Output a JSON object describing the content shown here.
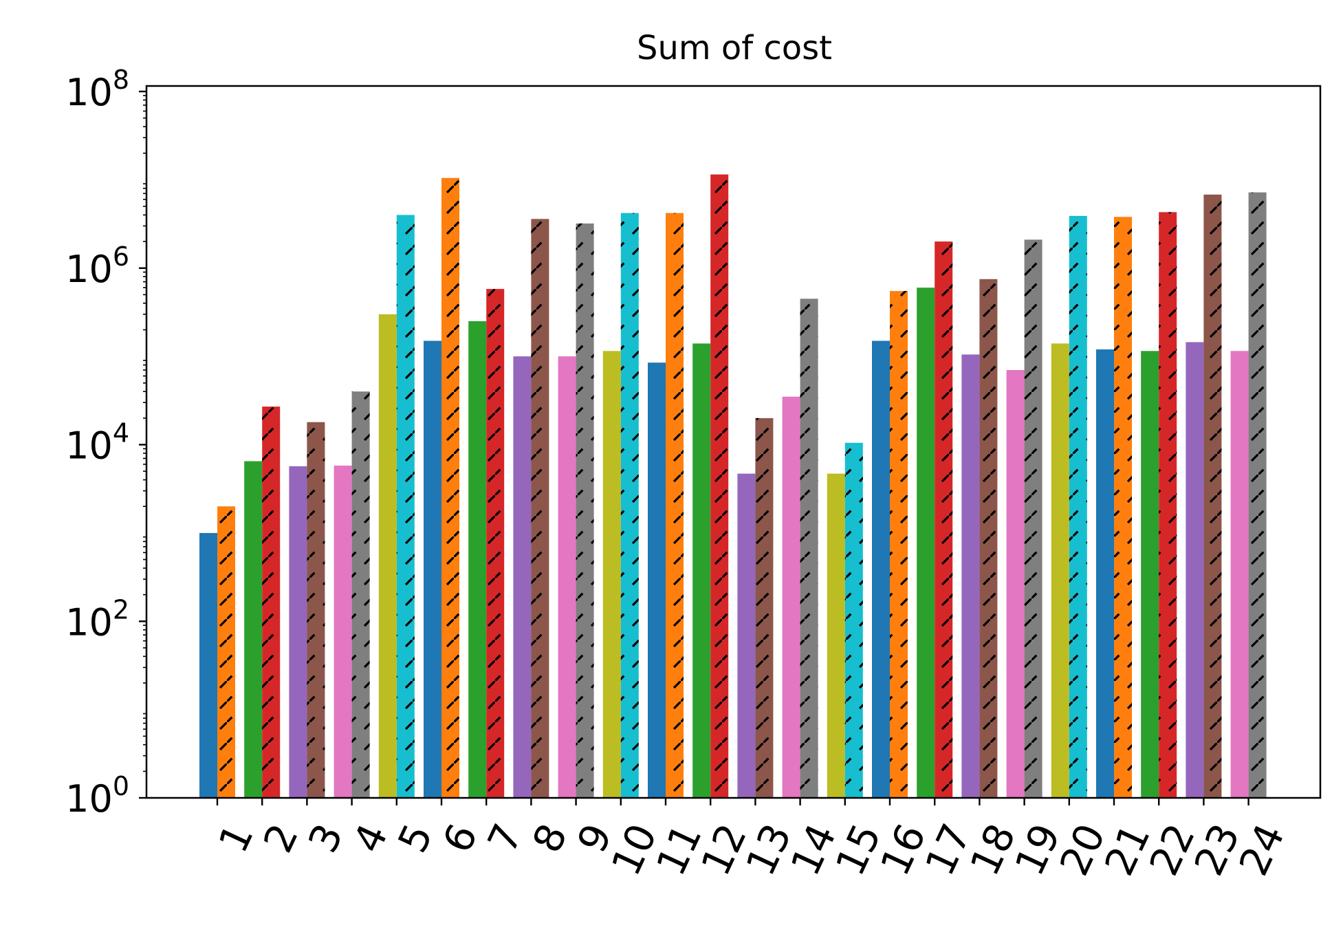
{
  "chart_data": {
    "type": "bar",
    "title": "Sum of cost",
    "xlabel": "",
    "ylabel": "",
    "yscale": "log",
    "ylim": [
      1,
      100000000
    ],
    "yticks": [
      {
        "base": "10",
        "exp": "0",
        "value": 1
      },
      {
        "base": "10",
        "exp": "2",
        "value": 100
      },
      {
        "base": "10",
        "exp": "4",
        "value": 10000
      },
      {
        "base": "10",
        "exp": "6",
        "value": 1000000
      },
      {
        "base": "10",
        "exp": "8",
        "value": 100000000
      }
    ],
    "categories": [
      "1",
      "2",
      "3",
      "4",
      "5",
      "6",
      "7",
      "8",
      "9",
      "10",
      "11",
      "12",
      "13",
      "14",
      "15",
      "16",
      "17",
      "18",
      "19",
      "20",
      "21",
      "22",
      "23",
      "24"
    ],
    "series": [
      {
        "hatch": "none",
        "values": [
          1000,
          6500,
          5700,
          5800,
          300000,
          150000,
          250000,
          100000,
          100000,
          115000,
          85000,
          140000,
          4700,
          35000,
          4700,
          150000,
          600000,
          105000,
          70000,
          140000,
          120000,
          115000,
          145000,
          115000
        ],
        "colors": [
          "#1f77b4",
          "#2ca02c",
          "#9467bd",
          "#e377c2",
          "#bcbd22",
          "#1f77b4",
          "#2ca02c",
          "#9467bd",
          "#e377c2",
          "#bcbd22",
          "#1f77b4",
          "#2ca02c",
          "#9467bd",
          "#e377c2",
          "#bcbd22",
          "#1f77b4",
          "#2ca02c",
          "#9467bd",
          "#e377c2",
          "#bcbd22",
          "#1f77b4",
          "#2ca02c",
          "#9467bd",
          "#e377c2"
        ]
      },
      {
        "hatch": "diagonal",
        "values": [
          2000,
          27000,
          18000,
          40000,
          4000000,
          10500000,
          580000,
          3600000,
          3200000,
          4200000,
          4200000,
          11500000,
          20000,
          450000,
          10500,
          550000,
          2000000,
          750000,
          2100000,
          3900000,
          3800000,
          4300000,
          6800000,
          7200000
        ],
        "colors": [
          "#ff7f0e",
          "#d62728",
          "#8c564b",
          "#7f7f7f",
          "#17becf",
          "#ff7f0e",
          "#d62728",
          "#8c564b",
          "#7f7f7f",
          "#17becf",
          "#ff7f0e",
          "#d62728",
          "#8c564b",
          "#7f7f7f",
          "#17becf",
          "#ff7f0e",
          "#d62728",
          "#8c564b",
          "#7f7f7f",
          "#17becf",
          "#ff7f0e",
          "#d62728",
          "#8c564b",
          "#7f7f7f"
        ]
      }
    ],
    "grid": false,
    "legend": "none"
  }
}
